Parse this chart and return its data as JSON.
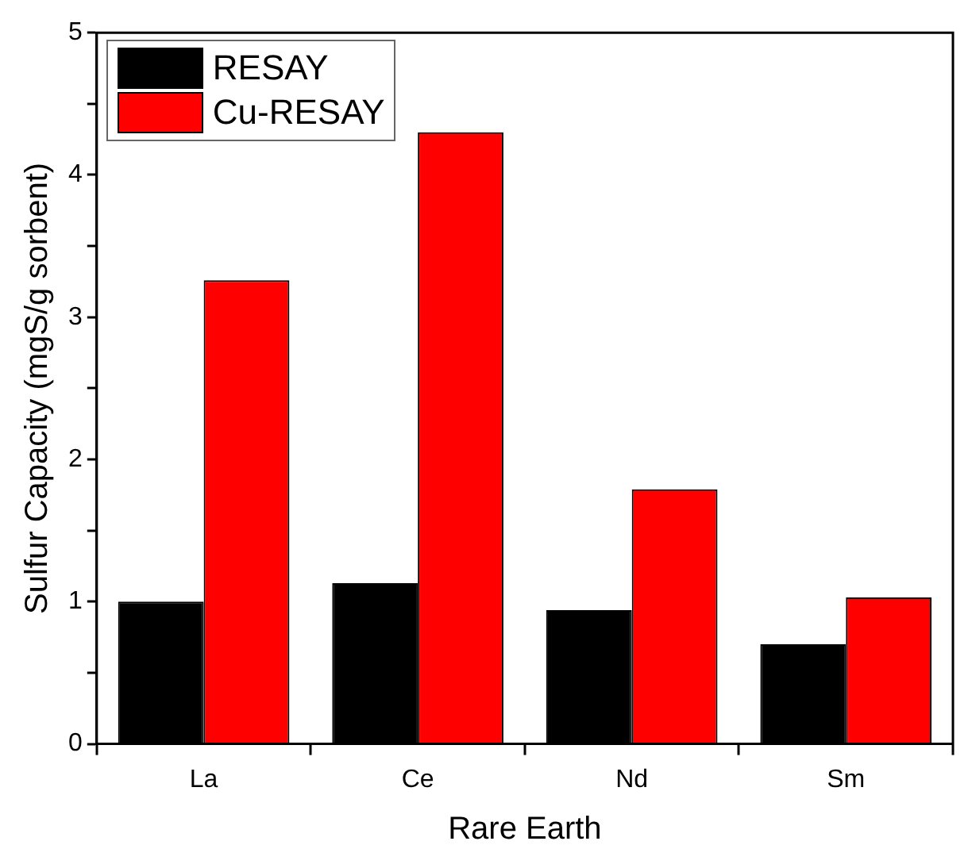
{
  "chart_data": {
    "type": "bar",
    "xlabel": "Rare Earth",
    "ylabel": "Sulfur Capacity (mgS/g sorbent)",
    "categories": [
      "La",
      "Ce",
      "Nd",
      "Sm"
    ],
    "series": [
      {
        "name": "RESAY",
        "color": "#000000",
        "values": [
          1.0,
          1.13,
          0.94,
          0.7
        ]
      },
      {
        "name": "Cu-RESAY",
        "color": "#ff0000",
        "values": [
          3.26,
          4.3,
          1.79,
          1.03
        ]
      }
    ],
    "ylim": [
      0,
      5
    ],
    "yticks": [
      0,
      {
        "value": 0.5,
        "label": null
      },
      1,
      {
        "value": 1.5,
        "label": null
      },
      2,
      {
        "value": 2.5,
        "label": null
      },
      3,
      {
        "value": 3.5,
        "label": null
      },
      4,
      {
        "value": 4.5,
        "label": null
      },
      5
    ],
    "grid": false,
    "legend": "top left"
  }
}
